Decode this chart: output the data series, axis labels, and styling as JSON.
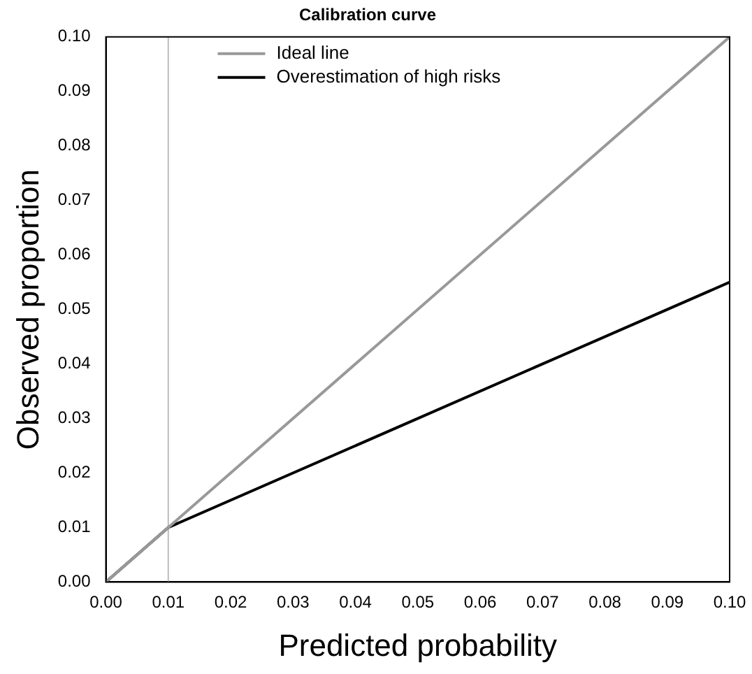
{
  "chart_data": {
    "type": "line",
    "title": "Calibration curve",
    "xlabel": "Predicted probability",
    "ylabel": "Observed proportion",
    "x": [
      0,
      0.01,
      0.1
    ],
    "series": [
      {
        "name": "Ideal line",
        "color": "#999999",
        "values": [
          0,
          0.01,
          0.1
        ]
      },
      {
        "name": "Overestimation of high risks",
        "color": "#000000",
        "values": [
          0,
          0.01,
          0.055
        ]
      }
    ],
    "xlim": [
      0,
      0.1
    ],
    "ylim": [
      0,
      0.1
    ],
    "xticks": [
      {
        "value": 0,
        "label": "0.00"
      },
      {
        "value": 0.01,
        "label": "0.01"
      },
      {
        "value": 0.02,
        "label": "0.02"
      },
      {
        "value": 0.03,
        "label": "0.03"
      },
      {
        "value": 0.04,
        "label": "0.04"
      },
      {
        "value": 0.05,
        "label": "0.05"
      },
      {
        "value": 0.06,
        "label": "0.06"
      },
      {
        "value": 0.07,
        "label": "0.07"
      },
      {
        "value": 0.08,
        "label": "0.08"
      },
      {
        "value": 0.09,
        "label": "0.09"
      },
      {
        "value": 0.1,
        "label": "0.10"
      }
    ],
    "yticks": [
      {
        "value": 0,
        "label": "0.00"
      },
      {
        "value": 0.01,
        "label": "0.01"
      },
      {
        "value": 0.02,
        "label": "0.02"
      },
      {
        "value": 0.03,
        "label": "0.03"
      },
      {
        "value": 0.04,
        "label": "0.04"
      },
      {
        "value": 0.05,
        "label": "0.05"
      },
      {
        "value": 0.06,
        "label": "0.06"
      },
      {
        "value": 0.07,
        "label": "0.07"
      },
      {
        "value": 0.08,
        "label": "0.08"
      },
      {
        "value": 0.09,
        "label": "0.09"
      },
      {
        "value": 0.1,
        "label": "0.10"
      }
    ],
    "ref_lines": [
      {
        "axis": "x",
        "value": 0.01,
        "color": "#bbbbbb"
      }
    ],
    "grid": false,
    "legend": "top left",
    "marker": "none",
    "line_style": "solid"
  }
}
